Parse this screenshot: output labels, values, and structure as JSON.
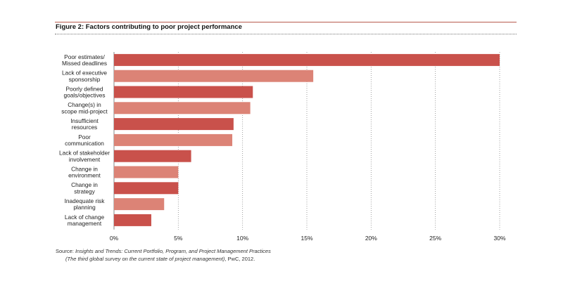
{
  "figure": {
    "title": "Figure 2: Factors contributing to poor project performance"
  },
  "chart_data": {
    "type": "bar",
    "orientation": "horizontal",
    "title": "Figure 2: Factors contributing to poor project performance",
    "xlabel": "",
    "ylabel": "",
    "xlim": [
      0,
      30
    ],
    "grid": true,
    "categories": [
      [
        "Poor estimates/",
        "Missed deadlines"
      ],
      [
        "Lack of executive",
        "sponsorship"
      ],
      [
        "Poorly defined",
        "goals/objectives"
      ],
      [
        "Change(s) in",
        "scope mid-project"
      ],
      [
        "Insufficient",
        "resources"
      ],
      [
        "Poor",
        "communication"
      ],
      [
        "Lack of stakeholder",
        "involvement"
      ],
      [
        "Change in",
        "environment"
      ],
      [
        "Change in",
        "strategy"
      ],
      [
        "Inadequate risk",
        "planning"
      ],
      [
        "Lack of change",
        "management"
      ]
    ],
    "values": [
      30,
      15.5,
      10.8,
      10.6,
      9.3,
      9.2,
      6.0,
      5.0,
      5.0,
      3.9,
      2.9
    ],
    "ticks": [
      0,
      5,
      10,
      15,
      20,
      25,
      30
    ],
    "tick_labels": [
      "0%",
      "5%",
      "10%",
      "15%",
      "20%",
      "25%",
      "30%"
    ],
    "colors": [
      "#c9514b",
      "#dc8376"
    ]
  },
  "source": {
    "prefix": "Source: ",
    "title_line1": "Insights and Trends: Current Portfolio, Program, and Project Management Practices",
    "title_line2": "(The third global survey on the current state of project management)",
    "suffix": ", PwC, 2012."
  }
}
